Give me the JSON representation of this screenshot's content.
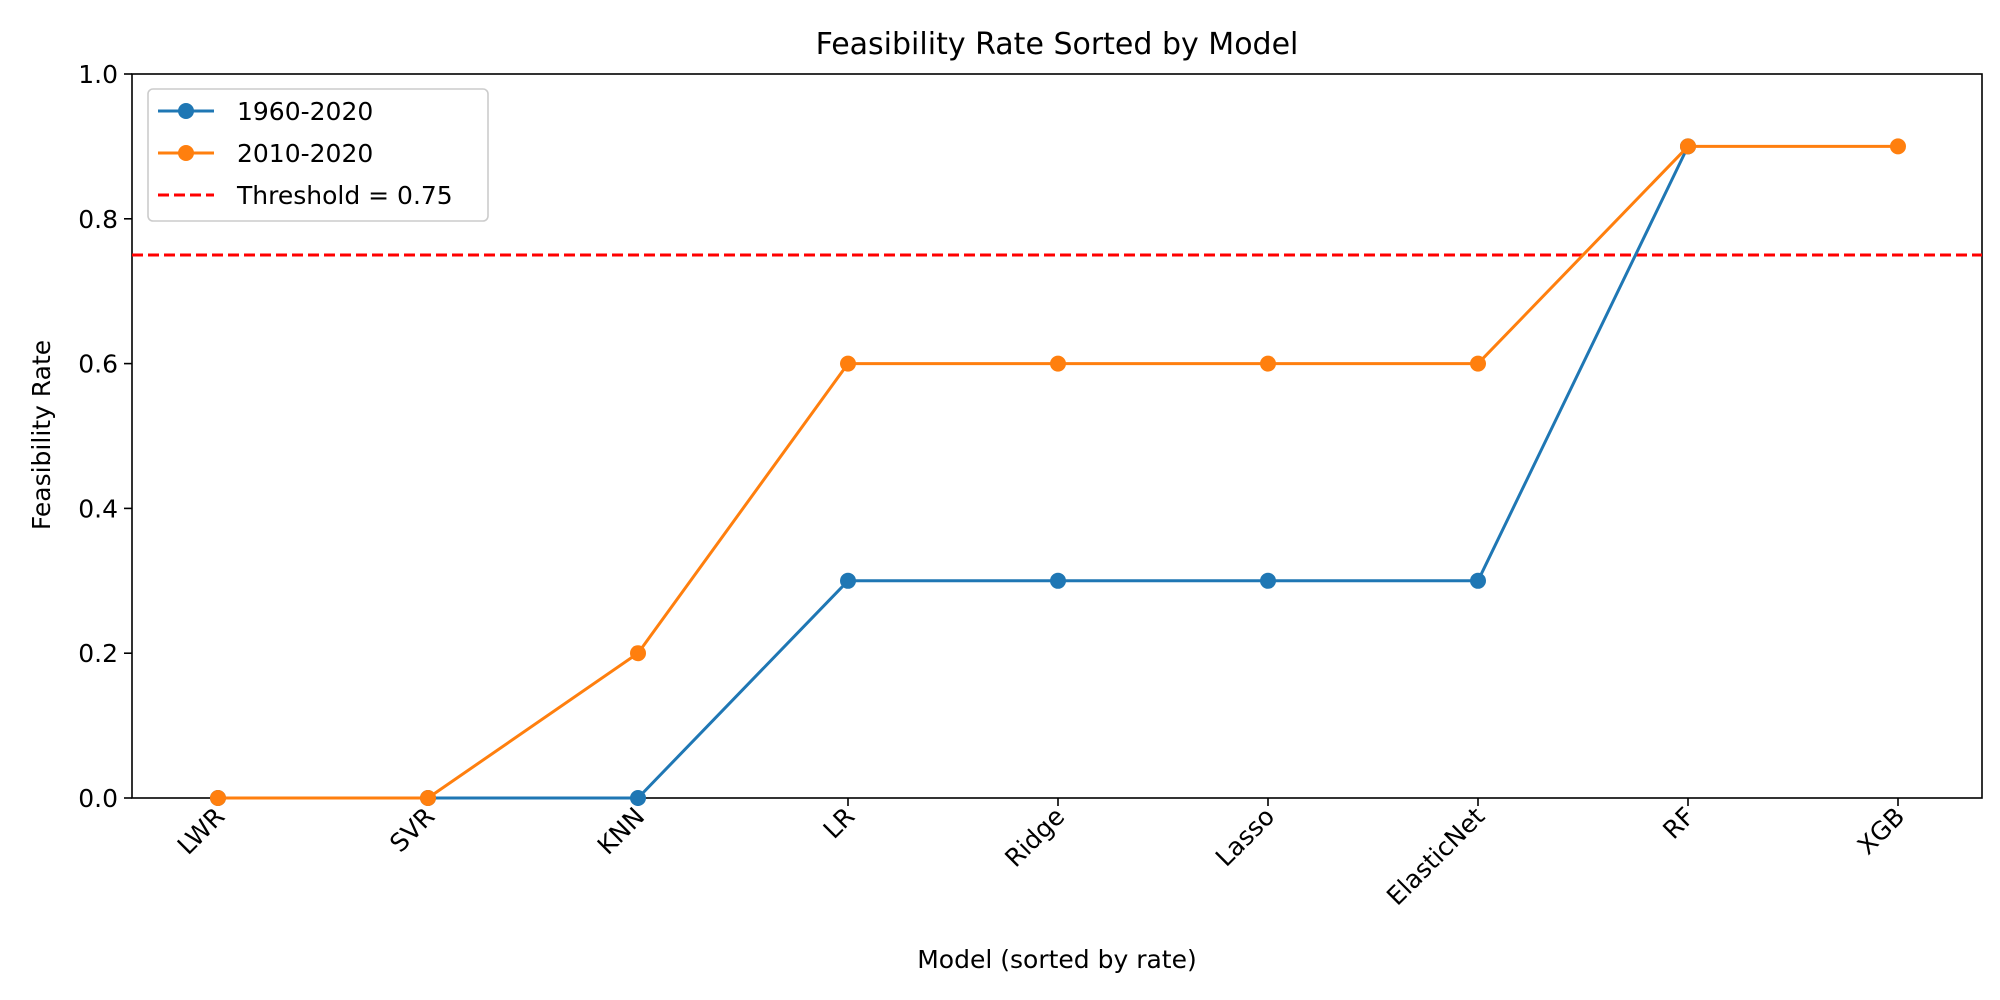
{
  "chart_data": {
    "type": "line",
    "title": "Feasibility Rate Sorted by Model",
    "xlabel": "Model (sorted by rate)",
    "ylabel": "Feasibility Rate",
    "categories": [
      "LWR",
      "SVR",
      "KNN",
      "LR",
      "Ridge",
      "Lasso",
      "ElasticNet",
      "RF",
      "XGB"
    ],
    "ylim": [
      0.0,
      1.0
    ],
    "yticks": [
      "0.0",
      "0.2",
      "0.4",
      "0.6",
      "0.8",
      "1.0"
    ],
    "grid": false,
    "legend_position": "top-left",
    "series": [
      {
        "name": "1960-2020",
        "color": "#1f77b4",
        "marker": "circle",
        "values": [
          0.0,
          0.0,
          0.0,
          0.3,
          0.3,
          0.3,
          0.3,
          0.9,
          null
        ]
      },
      {
        "name": "2010-2020",
        "color": "#ff7f0e",
        "marker": "circle",
        "values": [
          0.0,
          0.0,
          0.2,
          0.6,
          0.6,
          0.6,
          0.6,
          0.9,
          0.9
        ]
      }
    ],
    "reference_lines": [
      {
        "name": "Threshold = 0.75",
        "axis": "y",
        "value": 0.75,
        "color": "#ff0000",
        "style": "dashed"
      }
    ]
  }
}
